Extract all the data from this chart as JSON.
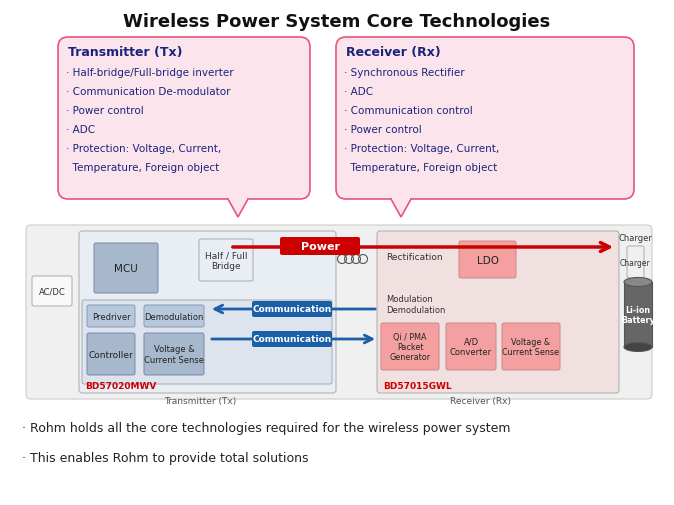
{
  "title": "Wireless Power System Core Technologies",
  "bg_color": "#ffffff",
  "bubble_fill": "#fce4ec",
  "bubble_edge": "#e75480",
  "text_dark": "#1a237e",
  "tx_title": "Transmitter (Tx)",
  "tx_items": [
    "· Half-bridge/Full-bridge inverter",
    "· Communication De-modulator",
    "· Power control",
    "· ADC",
    "· Protection: Voltage, Current,",
    "  Temperature, Foreign object"
  ],
  "rx_title": "Receiver (Rx)",
  "rx_items": [
    "· Synchronous Rectifier",
    "· ADC",
    "· Communication control",
    "· Power control",
    "· Protection: Voltage, Current,",
    "  Temperature, Foreign object"
  ],
  "bullet1": "· Rohm holds all the core technologies required for the wireless power system",
  "bullet2": "· This enables Rohm to provide total solutions",
  "arrow_red": "#cc0000",
  "arrow_blue": "#1a5fa8",
  "tx_box_fill": "#b0c4de",
  "tx_box_edge": "#8899aa",
  "rx_box_fill": "#f4a0a0",
  "rx_box_edge": "#cc8888",
  "chip_fill_tx": "#d8e4f0",
  "chip_fill_rx": "#f0d8d8",
  "diag_bg": "#f0f0f0",
  "diag_edge": "#cccccc",
  "outer_fill": "#f5f5f5",
  "outer_edge": "#bbbbbb"
}
